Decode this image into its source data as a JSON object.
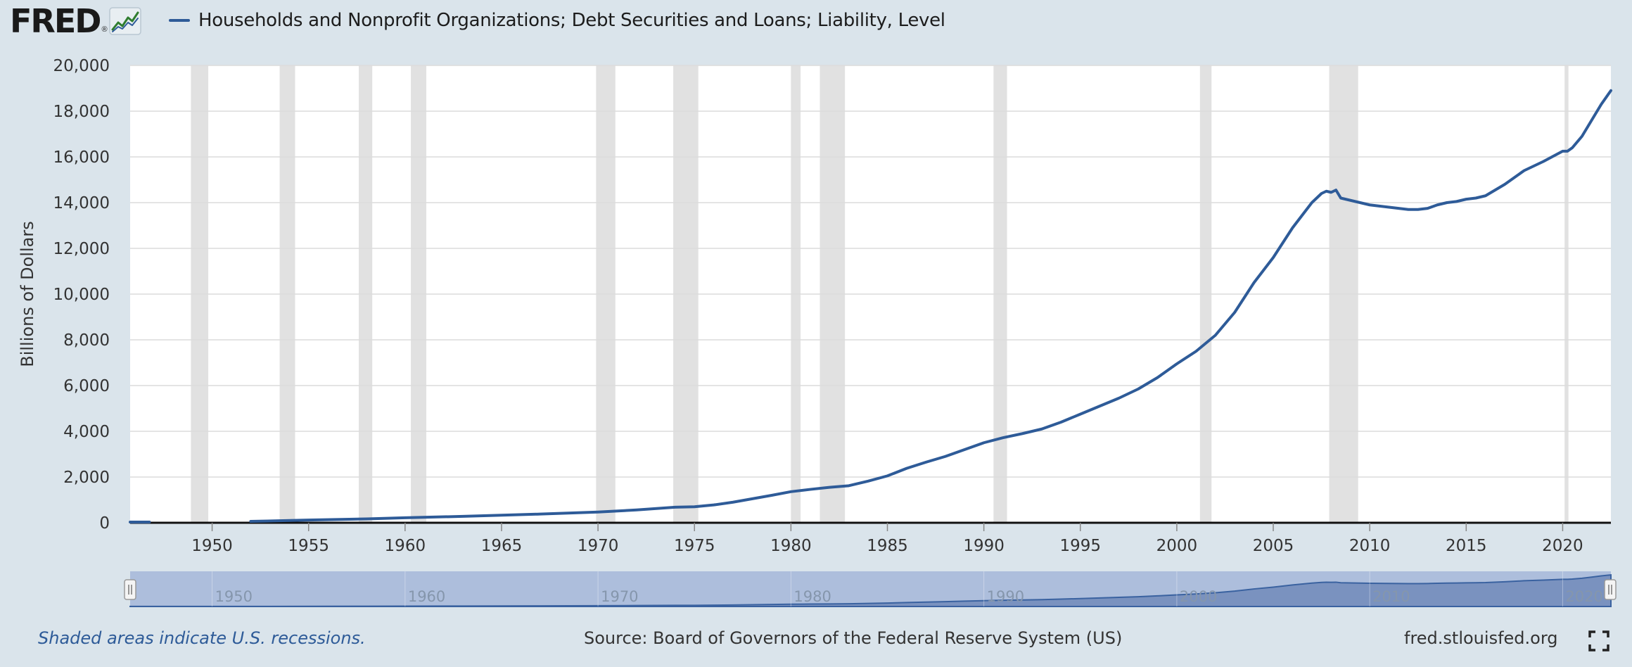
{
  "header": {
    "logo_text": "FRED",
    "logo_reg": "®",
    "series_title": "Households and Nonprofit Organizations; Debt Securities and Loans; Liability, Level",
    "series_color": "#2e5b98"
  },
  "footer": {
    "recession_note": "Shaded areas indicate U.S. recessions.",
    "source": "Source: Board of Governors of the Federal Reserve System (US)",
    "site": "fred.stlouisfed.org",
    "fullscreen_icon": "fullscreen-icon"
  },
  "chart_data": {
    "type": "line",
    "title": "Households and Nonprofit Organizations; Debt Securities and Loans; Liability, Level",
    "xlabel": "",
    "ylabel": "Billions of Dollars",
    "xlim": [
      1945.75,
      2022.5
    ],
    "ylim": [
      0,
      20000
    ],
    "yticks": [
      0,
      2000,
      4000,
      6000,
      8000,
      10000,
      12000,
      14000,
      16000,
      18000,
      20000
    ],
    "ytick_labels": [
      "0",
      "2,000",
      "4,000",
      "6,000",
      "8,000",
      "10,000",
      "12,000",
      "14,000",
      "16,000",
      "18,000",
      "20,000"
    ],
    "xticks": [
      1950,
      1955,
      1960,
      1965,
      1970,
      1975,
      1980,
      1985,
      1990,
      1995,
      2000,
      2005,
      2010,
      2015,
      2020
    ],
    "grid": "horizontal",
    "recession_color": "#e1e1e1",
    "recessions": [
      [
        1948.9,
        1949.8
      ],
      [
        1953.5,
        1954.3
      ],
      [
        1957.6,
        1958.3
      ],
      [
        1960.3,
        1961.1
      ],
      [
        1969.9,
        1970.9
      ],
      [
        1973.9,
        1975.2
      ],
      [
        1980.0,
        1980.5
      ],
      [
        1981.5,
        1982.8
      ],
      [
        1990.5,
        1991.2
      ],
      [
        2001.2,
        2001.8
      ],
      [
        2007.9,
        2009.4
      ],
      [
        2020.1,
        2020.3
      ]
    ],
    "series": [
      {
        "name": "Households and Nonprofit Organizations; Debt Securities and Loans; Liability, Level",
        "color": "#2e5b98",
        "x": [
          1945.75,
          1946.75,
          1952.0,
          1955.0,
          1958.0,
          1960.0,
          1963.0,
          1965.0,
          1967.0,
          1970.0,
          1972.0,
          1974.0,
          1975.0,
          1976.0,
          1977.0,
          1978.0,
          1979.0,
          1980.0,
          1981.0,
          1982.0,
          1983.0,
          1984.0,
          1985.0,
          1986.0,
          1987.0,
          1988.0,
          1989.0,
          1990.0,
          1991.0,
          1992.0,
          1993.0,
          1994.0,
          1995.0,
          1996.0,
          1997.0,
          1998.0,
          1999.0,
          2000.0,
          2001.0,
          2002.0,
          2003.0,
          2004.0,
          2005.0,
          2006.0,
          2007.0,
          2007.5,
          2007.75,
          2008.0,
          2008.25,
          2008.5,
          2009.0,
          2010.0,
          2011.0,
          2011.5,
          2012.0,
          2012.5,
          2013.0,
          2013.5,
          2014.0,
          2014.5,
          2015.0,
          2015.5,
          2016.0,
          2017.0,
          2018.0,
          2019.0,
          2020.0,
          2020.25,
          2020.5,
          2021.0,
          2021.5,
          2022.0,
          2022.5
        ],
        "values": [
          30,
          30,
          60,
          120,
          170,
          220,
          280,
          330,
          380,
          470,
          560,
          680,
          700,
          780,
          900,
          1050,
          1200,
          1360,
          1460,
          1550,
          1620,
          1820,
          2050,
          2380,
          2650,
          2900,
          3200,
          3500,
          3720,
          3900,
          4100,
          4400,
          4750,
          5100,
          5450,
          5850,
          6350,
          6950,
          7500,
          8200,
          9200,
          10500,
          11600,
          12900,
          14000,
          14400,
          14500,
          14450,
          14550,
          14200,
          14100,
          13900,
          13800,
          13750,
          13700,
          13700,
          13750,
          13900,
          14000,
          14050,
          14150,
          14200,
          14300,
          14800,
          15400,
          15800,
          16250,
          16250,
          16400,
          16900,
          17600,
          18300,
          18900
        ]
      }
    ],
    "navigator": {
      "xticks": [
        1950,
        1960,
        1970,
        1980,
        1990,
        2000,
        2010,
        2020
      ]
    }
  }
}
